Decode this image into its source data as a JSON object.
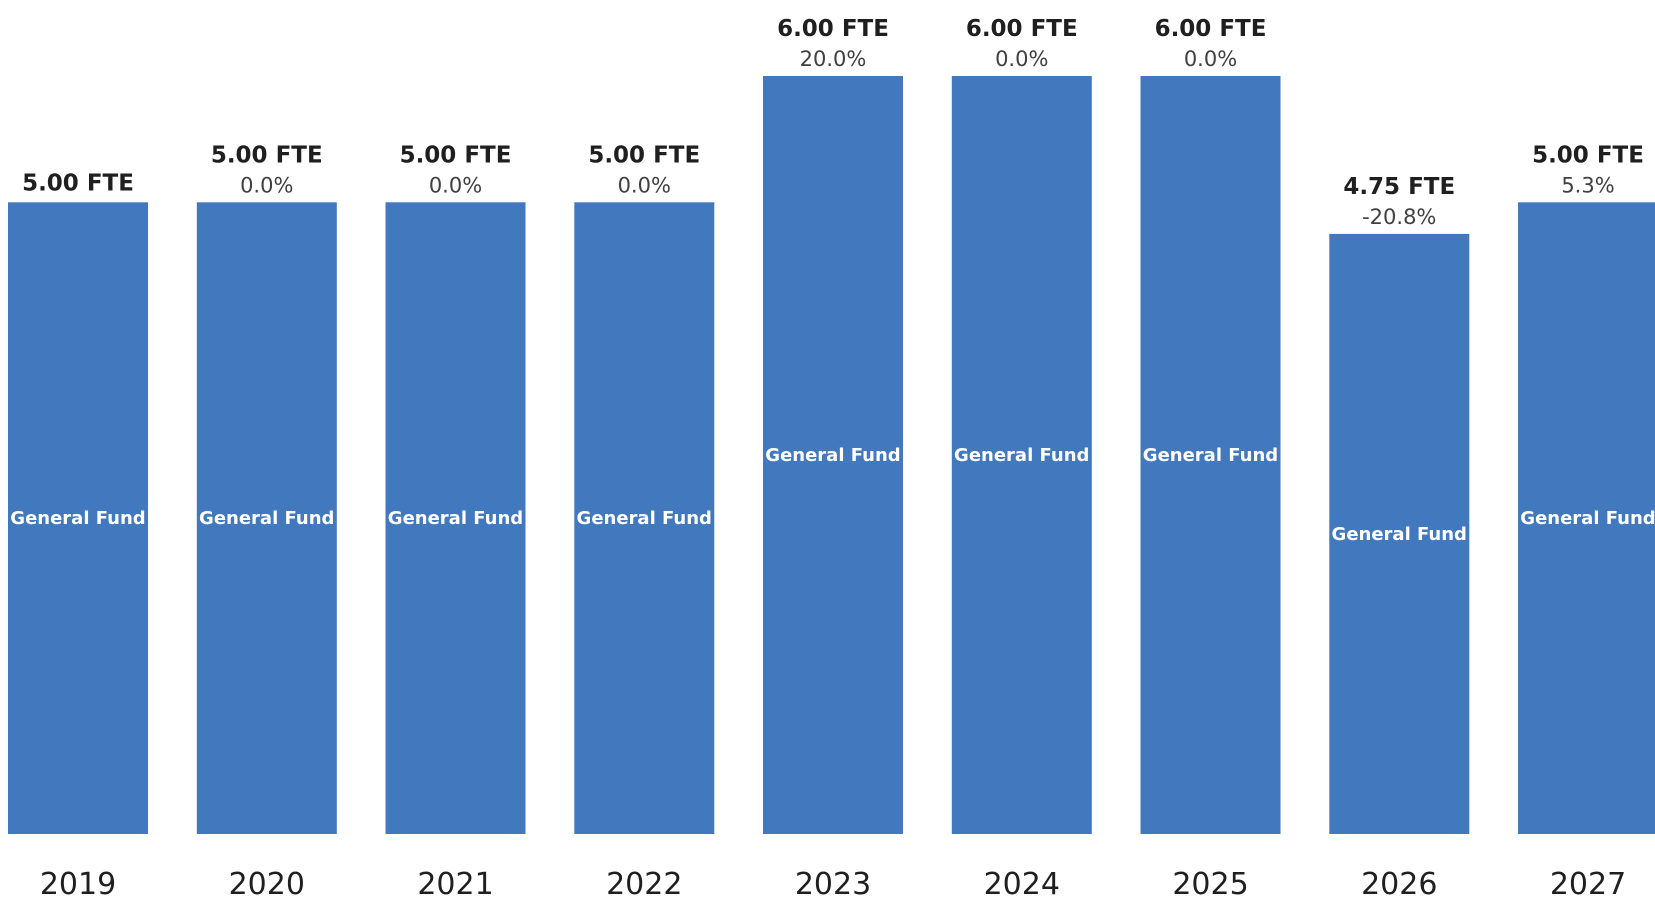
{
  "chart_data": {
    "type": "bar",
    "categories": [
      "2019",
      "2020",
      "2021",
      "2022",
      "2023",
      "2024",
      "2025",
      "2026",
      "2027"
    ],
    "series": [
      {
        "name": "General Fund",
        "values": [
          5.0,
          5.0,
          5.0,
          5.0,
          6.0,
          6.0,
          6.0,
          4.75,
          5.0
        ],
        "color": "#4178be"
      }
    ],
    "value_labels": [
      "5.00 FTE",
      "5.00 FTE",
      "5.00 FTE",
      "5.00 FTE",
      "6.00 FTE",
      "6.00 FTE",
      "6.00 FTE",
      "4.75 FTE",
      "5.00 FTE"
    ],
    "change_labels": [
      "",
      "0.0%",
      "0.0%",
      "0.0%",
      "20.0%",
      "0.0%",
      "0.0%",
      "-20.8%",
      "5.3%"
    ],
    "title": "",
    "xlabel": "",
    "ylabel": "",
    "ylim": [
      0,
      6
    ],
    "grid": false,
    "legend": "none"
  }
}
